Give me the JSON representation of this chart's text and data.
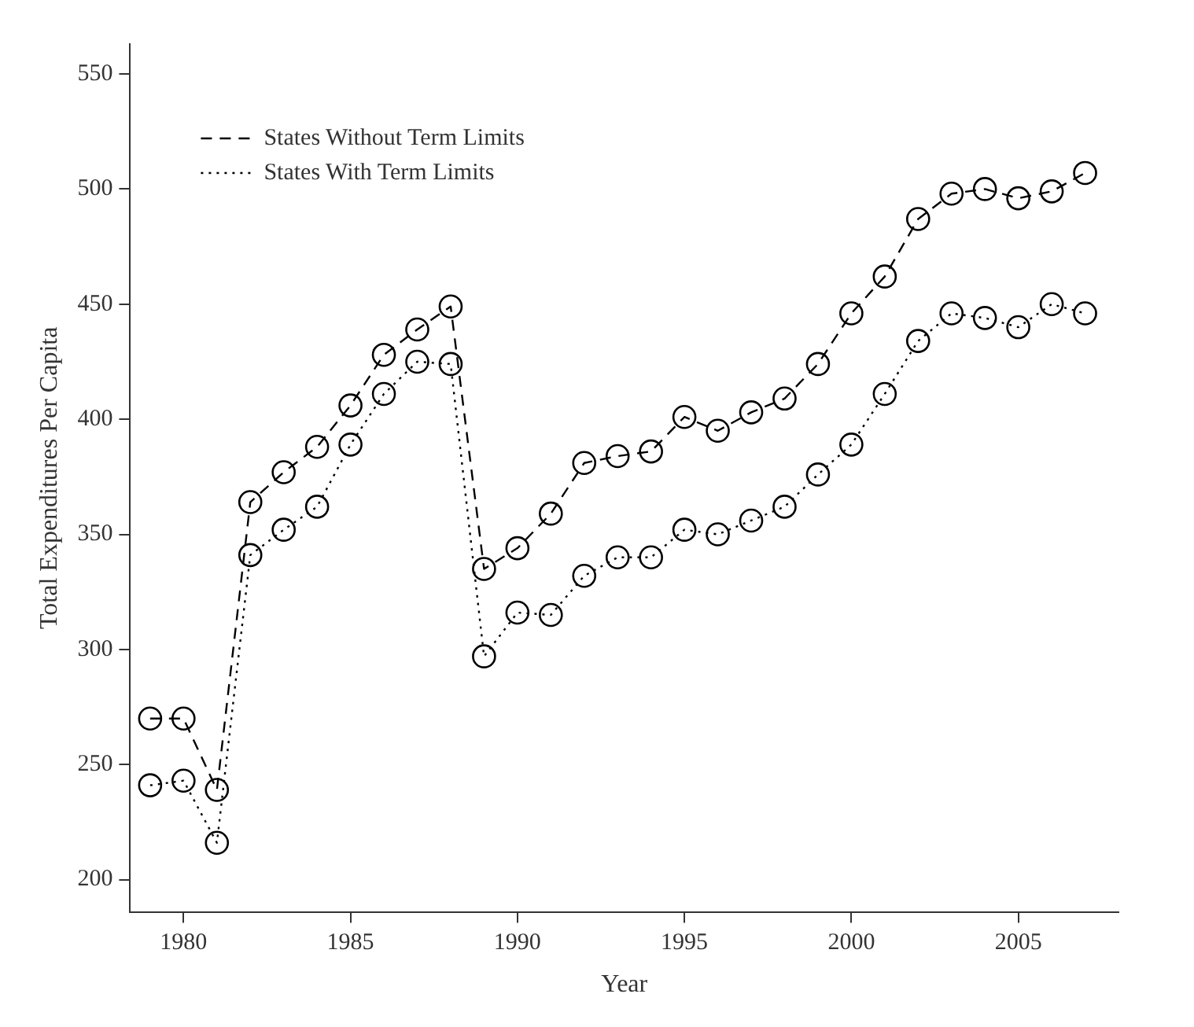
{
  "chart_data": {
    "type": "line",
    "xlabel": "Year",
    "ylabel": "Total Expenditures Per Capita",
    "x": [
      1979,
      1980,
      1981,
      1982,
      1983,
      1984,
      1985,
      1986,
      1987,
      1988,
      1989,
      1990,
      1991,
      1992,
      1993,
      1994,
      1995,
      1996,
      1997,
      1998,
      1999,
      2000,
      2001,
      2002,
      2003,
      2004,
      2005,
      2006,
      2007
    ],
    "series": [
      {
        "name": "States Without Term Limits",
        "color": "#000000",
        "line_style": "dashed",
        "values": [
          270,
          270,
          239,
          364,
          377,
          388,
          406,
          428,
          439,
          449,
          335,
          344,
          359,
          381,
          384,
          386,
          401,
          395,
          403,
          409,
          424,
          446,
          462,
          487,
          498,
          500,
          496,
          499,
          507
        ]
      },
      {
        "name": "States With Term Limits",
        "color": "#000000",
        "line_style": "dotted",
        "values": [
          241,
          243,
          216,
          341,
          352,
          362,
          389,
          411,
          425,
          424,
          297,
          316,
          315,
          332,
          340,
          340,
          352,
          350,
          356,
          362,
          376,
          389,
          411,
          434,
          446,
          444,
          440,
          450,
          446
        ]
      }
    ],
    "xlim": [
      1978.4,
      2008
    ],
    "xticks": [
      1980,
      1985,
      1990,
      1995,
      2000,
      2005
    ],
    "ylim": [
      186,
      563
    ],
    "yticks": [
      200,
      250,
      300,
      350,
      400,
      450,
      500,
      550
    ],
    "grid": false,
    "legend": "top left",
    "marker": "circle"
  }
}
